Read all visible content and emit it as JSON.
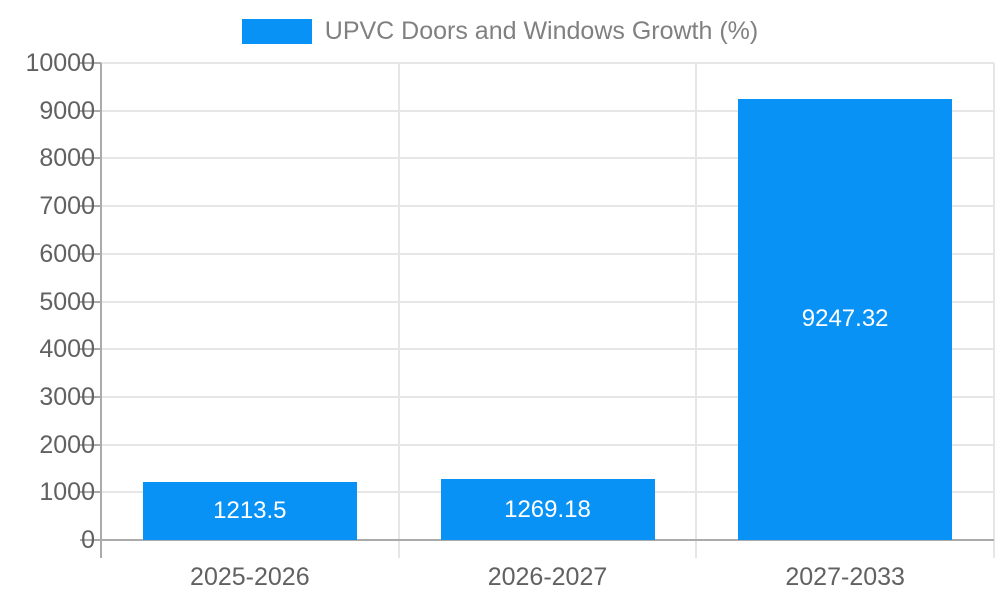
{
  "chart": {
    "colors": {
      "bar": "#0992f5",
      "grid": "#e6e6e6",
      "axis": "#ababab",
      "tick_text": "#616161",
      "legend_text": "#808080",
      "value_label_text": "#ffffff",
      "background": "#ffffff"
    }
  },
  "chart_data": {
    "type": "bar",
    "title": "UPVC Doors and Windows Growth (%)",
    "legend_position": "top",
    "categories": [
      "2025-2026",
      "2026-2027",
      "2027-2033"
    ],
    "series": [
      {
        "name": "UPVC Doors and Windows Growth (%)",
        "values": [
          1213.5,
          1269.18,
          9247.32
        ],
        "value_labels": [
          "1213.5",
          "1269.18",
          "9247.32"
        ]
      }
    ],
    "xlabel": "",
    "ylabel": "",
    "ylim": [
      0,
      10000
    ],
    "ytick_interval": 1000,
    "ytick_labels": [
      "0",
      "1000",
      "2000",
      "3000",
      "4000",
      "5000",
      "6000",
      "7000",
      "8000",
      "9000",
      "10000"
    ],
    "grid": true,
    "value_labels_inside_bars": true
  }
}
